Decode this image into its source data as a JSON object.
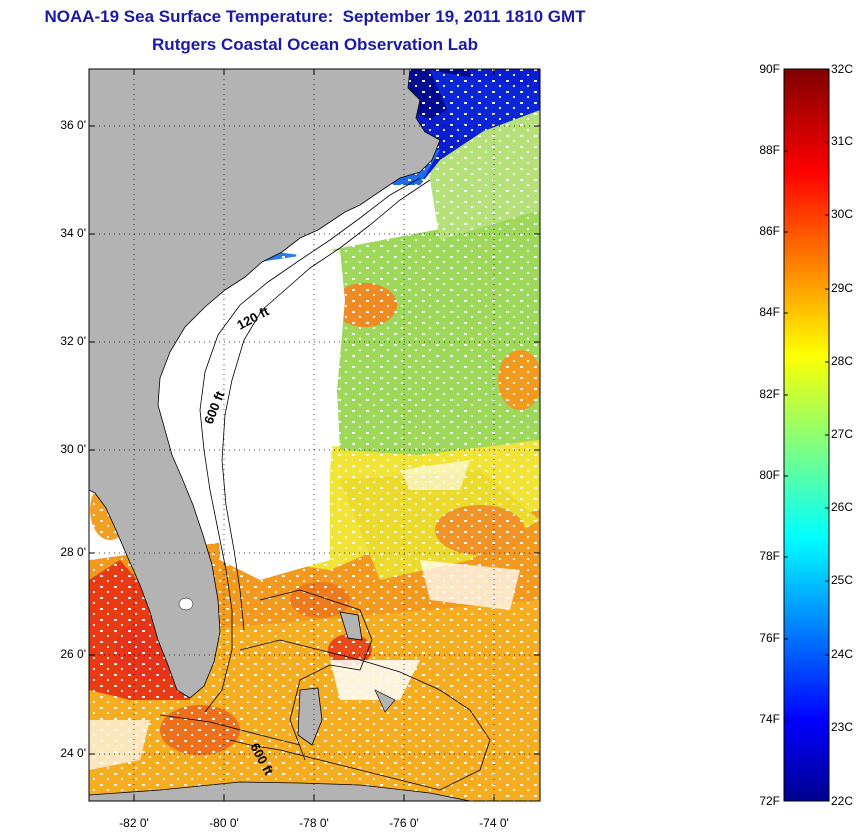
{
  "title": {
    "line1": "NOAA-19 Sea Surface Temperature:  September 19, 2011 1810 GMT",
    "line2": "Rutgers Coastal Ocean Observation Lab"
  },
  "map": {
    "region": "US Southeast Atlantic coast, Florida, Bahamas",
    "lon_range": [
      -83,
      -73
    ],
    "lat_range": [
      23,
      37
    ],
    "y_ticks": [
      "36 0'",
      "34 0'",
      "32 0'",
      "30 0'",
      "28 0'",
      "26 0'",
      "24 0'"
    ],
    "x_ticks": [
      "-82 0'",
      "-80 0'",
      "-78 0'",
      "-76 0'",
      "-74 0'"
    ],
    "contour_labels": [
      "120 ft",
      "600 ft",
      "600 ft"
    ],
    "grid": "dotted"
  },
  "colorbar": {
    "fahrenheit": [
      "90F",
      "88F",
      "86F",
      "84F",
      "82F",
      "80F",
      "78F",
      "76F",
      "74F",
      "72F"
    ],
    "celsius": [
      "32C",
      "31C",
      "30C",
      "29C",
      "28C",
      "27C",
      "26C",
      "25C",
      "24C",
      "23C",
      "22C"
    ],
    "range_c": [
      22,
      32
    ],
    "colormap": "jet"
  },
  "colors": {
    "title": "#1a1aa6",
    "land": "#b3b3b3",
    "cloud": "#ffffff"
  }
}
